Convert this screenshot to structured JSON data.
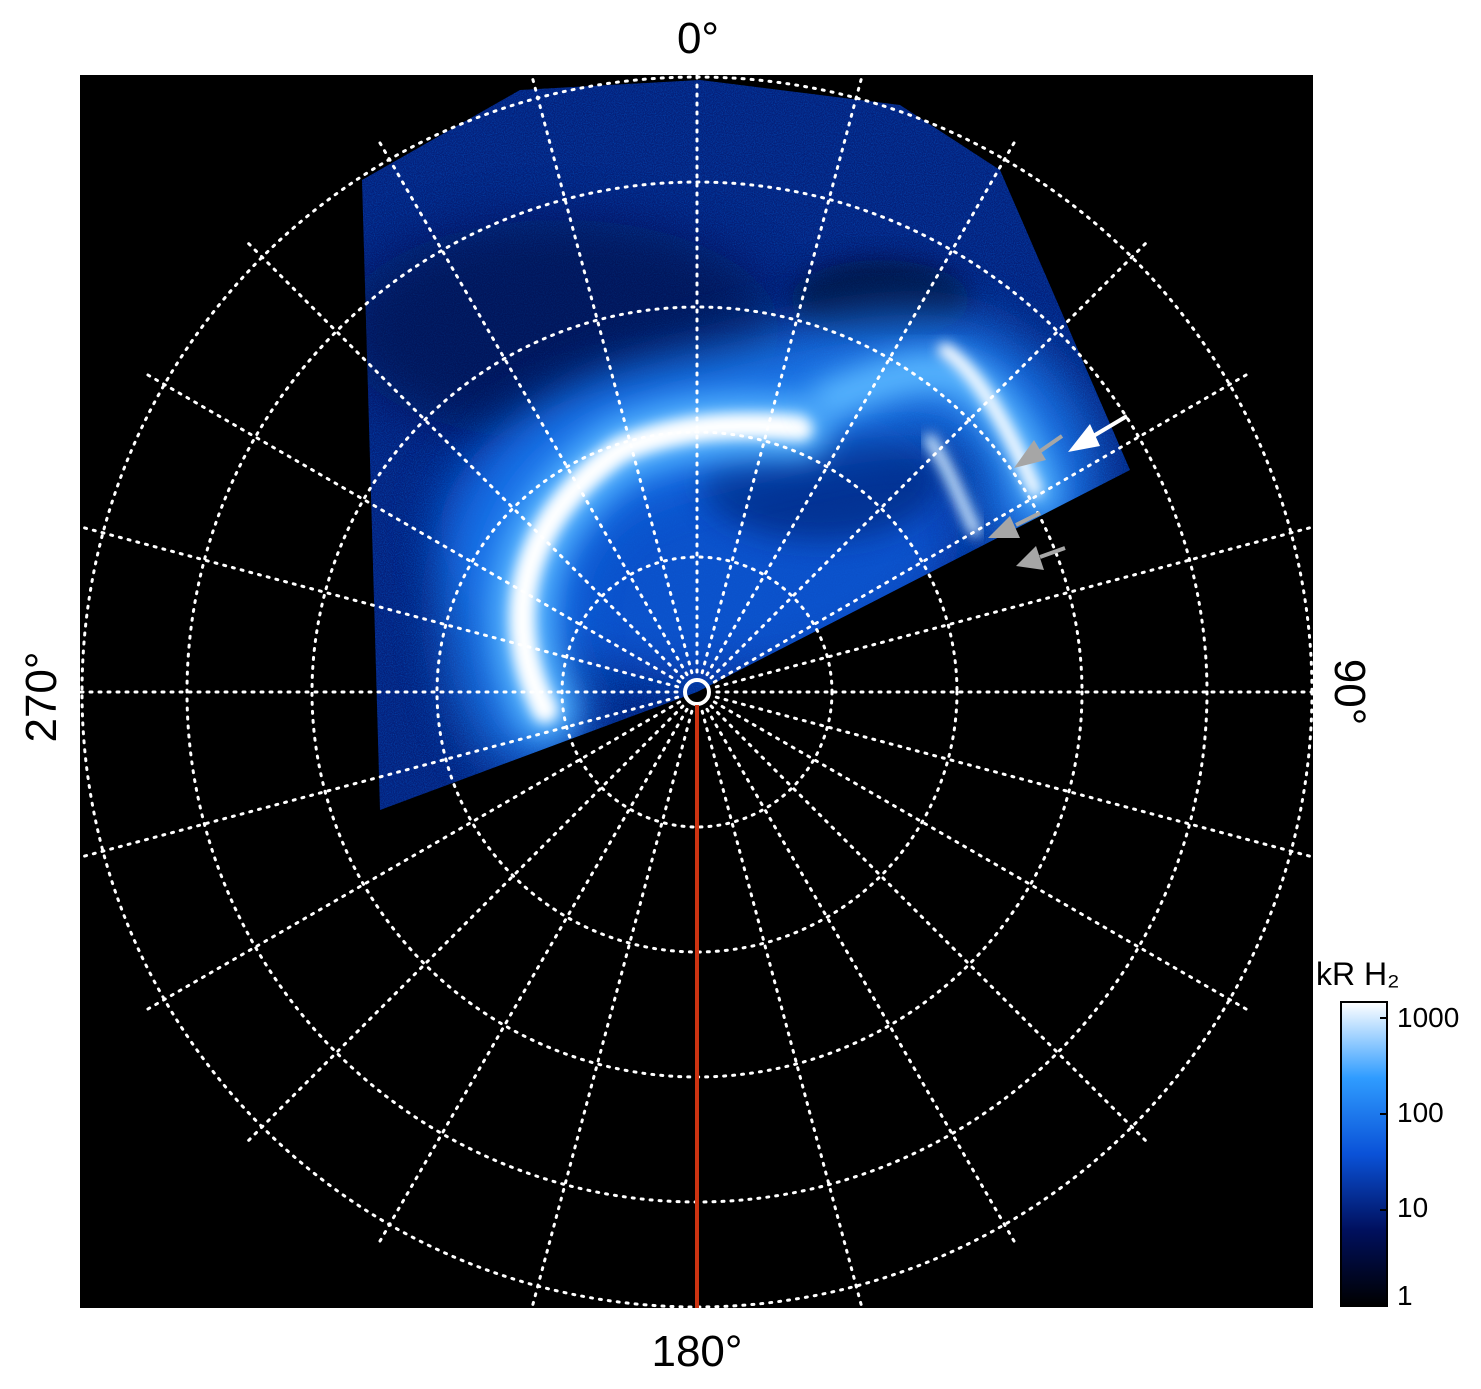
{
  "axis_labels": {
    "top": "0°",
    "right": "90°",
    "bottom": "180°",
    "left": "270°"
  },
  "colorbar": {
    "title": "kR H₂",
    "ticks": [
      "1000",
      "100",
      "10",
      "1"
    ],
    "scale": "log",
    "range": [
      1,
      1000
    ],
    "colors": [
      "#000000",
      "#00105e",
      "#0a52d8",
      "#2f9cff",
      "#ffffff"
    ]
  },
  "grid": {
    "style": "dotted",
    "color": "#ffffff",
    "meridian_spacing_deg": 15
  },
  "colors": {
    "background": "#000000",
    "meridian_line": "#cc3311",
    "arrow_primary": "#ffffff",
    "arrow_secondary": "#a6a6a6"
  }
}
